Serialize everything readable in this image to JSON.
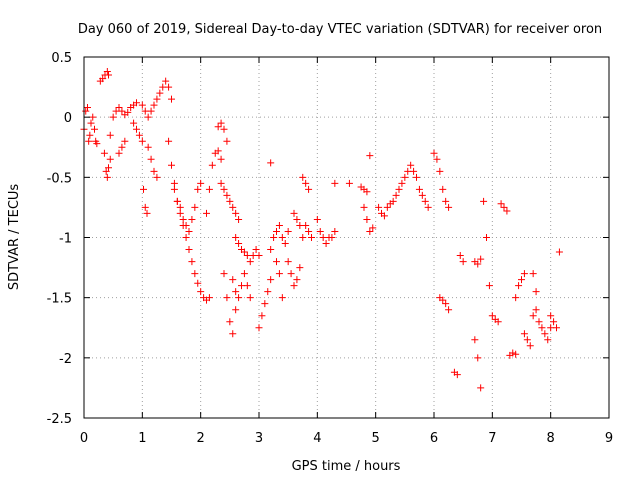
{
  "chart_data": {
    "type": "scatter",
    "title": "Day 060 of 2019, Sidereal Day-to-day VTEC variation (SDTVAR) for receiver oron",
    "xlabel": "GPS time / hours",
    "ylabel": "SDTVAR / TECUs",
    "xlim": [
      0,
      9
    ],
    "ylim": [
      -2.5,
      0.5
    ],
    "xticks": [
      0,
      1,
      2,
      3,
      4,
      5,
      6,
      7,
      8,
      9
    ],
    "yticks": [
      -2.5,
      -2,
      -1.5,
      -1,
      -0.5,
      0,
      0.5
    ],
    "xtick_labels": [
      "0",
      "1",
      "2",
      "3",
      "4",
      "5",
      "6",
      "7",
      "8",
      "9"
    ],
    "ytick_labels": [
      "-2.5",
      "-2",
      "-1.5",
      "-1",
      "-0.5",
      "0",
      "0.5"
    ],
    "grid": true,
    "marker": "+",
    "color": "#ff0000",
    "series": [
      {
        "name": "SDTVAR",
        "segments": [
          {
            "x": [
              0.0,
              0.03,
              0.06
            ],
            "y": [
              -0.1,
              0.05,
              0.08
            ]
          },
          {
            "x": [
              0.08,
              0.1,
              0.12,
              0.15,
              0.18,
              0.2,
              0.22
            ],
            "y": [
              -0.2,
              -0.15,
              -0.05,
              0.0,
              -0.1,
              -0.2,
              -0.22
            ]
          },
          {
            "x": [
              0.28,
              0.32,
              0.36,
              0.4,
              0.42
            ],
            "y": [
              0.3,
              0.32,
              0.35,
              0.38,
              0.35
            ]
          },
          {
            "x": [
              0.35,
              0.38,
              0.4,
              0.42,
              0.45
            ],
            "y": [
              -0.3,
              -0.45,
              -0.5,
              -0.42,
              -0.35
            ]
          },
          {
            "x": [
              0.45,
              0.5,
              0.55,
              0.6,
              0.65,
              0.7,
              0.75,
              0.8,
              0.85,
              0.9
            ],
            "y": [
              -0.15,
              0.0,
              0.05,
              0.08,
              0.05,
              0.02,
              0.04,
              0.08,
              0.1,
              0.12
            ]
          },
          {
            "x": [
              0.6,
              0.65,
              0.7
            ],
            "y": [
              -0.3,
              -0.25,
              -0.2
            ]
          },
          {
            "x": [
              0.85,
              0.9,
              0.95,
              1.0
            ],
            "y": [
              -0.05,
              -0.1,
              -0.15,
              -0.2
            ]
          },
          {
            "x": [
              1.0,
              1.05,
              1.1,
              1.15,
              1.2,
              1.25
            ],
            "y": [
              0.1,
              0.05,
              0.0,
              0.05,
              0.1,
              0.15
            ]
          },
          {
            "x": [
              1.02,
              1.05,
              1.08
            ],
            "y": [
              -0.6,
              -0.75,
              -0.8
            ]
          },
          {
            "x": [
              1.1,
              1.15,
              1.2,
              1.25
            ],
            "y": [
              -0.25,
              -0.35,
              -0.45,
              -0.5
            ]
          },
          {
            "x": [
              1.3,
              1.35,
              1.4,
              1.45,
              1.5
            ],
            "y": [
              0.2,
              0.25,
              0.3,
              0.25,
              0.15
            ]
          },
          {
            "x": [
              1.45,
              1.5,
              1.55,
              1.6,
              1.65,
              1.7,
              1.75,
              1.8,
              1.85,
              1.9,
              1.95,
              2.0,
              2.05,
              2.1,
              2.15
            ],
            "y": [
              -0.2,
              -0.4,
              -0.55,
              -0.7,
              -0.8,
              -0.9,
              -1.0,
              -1.1,
              -1.2,
              -1.3,
              -1.38,
              -1.45,
              -1.5,
              -1.52,
              -1.5
            ]
          },
          {
            "x": [
              1.55,
              1.6,
              1.65,
              1.7,
              1.75,
              1.8,
              1.85,
              1.9,
              1.95,
              2.0
            ],
            "y": [
              -0.6,
              -0.7,
              -0.75,
              -0.85,
              -0.9,
              -0.95,
              -0.85,
              -0.75,
              -0.6,
              -0.55
            ]
          },
          {
            "x": [
              2.1,
              2.15,
              2.2,
              2.25,
              2.3,
              2.35
            ],
            "y": [
              -0.8,
              -0.6,
              -0.4,
              -0.3,
              -0.28,
              -0.35
            ]
          },
          {
            "x": [
              2.3,
              2.35,
              2.4,
              2.45
            ],
            "y": [
              -0.08,
              -0.05,
              -0.1,
              -0.2
            ]
          },
          {
            "x": [
              2.35,
              2.4,
              2.45,
              2.5,
              2.55,
              2.6,
              2.65
            ],
            "y": [
              -0.55,
              -0.6,
              -0.65,
              -0.7,
              -0.75,
              -0.8,
              -0.85
            ]
          },
          {
            "x": [
              2.4,
              2.45,
              2.5,
              2.55,
              2.6
            ],
            "y": [
              -1.3,
              -1.5,
              -1.7,
              -1.8,
              -1.6
            ]
          },
          {
            "x": [
              2.6,
              2.65,
              2.7,
              2.75,
              2.8,
              2.85,
              2.9,
              2.95,
              3.0
            ],
            "y": [
              -1.0,
              -1.05,
              -1.1,
              -1.12,
              -1.15,
              -1.2,
              -1.15,
              -1.1,
              -1.15
            ]
          },
          {
            "x": [
              2.55,
              2.6,
              2.65,
              2.7
            ],
            "y": [
              -1.35,
              -1.45,
              -1.5,
              -1.4
            ]
          },
          {
            "x": [
              2.75,
              2.8,
              2.85
            ],
            "y": [
              -1.3,
              -1.4,
              -1.5
            ]
          },
          {
            "x": [
              3.0,
              3.05,
              3.1,
              3.15,
              3.2
            ],
            "y": [
              -1.75,
              -1.65,
              -1.55,
              -1.45,
              -1.35
            ]
          },
          {
            "x": [
              3.2
            ],
            "y": [
              -0.38
            ]
          },
          {
            "x": [
              3.2,
              3.25,
              3.3,
              3.35,
              3.4,
              3.45,
              3.5
            ],
            "y": [
              -1.1,
              -1.0,
              -0.95,
              -0.9,
              -1.0,
              -1.05,
              -0.95
            ]
          },
          {
            "x": [
              3.3,
              3.35,
              3.4
            ],
            "y": [
              -1.2,
              -1.3,
              -1.5
            ]
          },
          {
            "x": [
              3.5,
              3.55,
              3.6,
              3.65,
              3.7
            ],
            "y": [
              -1.2,
              -1.3,
              -1.4,
              -1.35,
              -1.25
            ]
          },
          {
            "x": [
              3.6,
              3.65,
              3.7,
              3.75
            ],
            "y": [
              -0.8,
              -0.85,
              -0.9,
              -1.0
            ]
          },
          {
            "x": [
              3.75,
              3.8,
              3.85
            ],
            "y": [
              -0.5,
              -0.55,
              -0.6
            ]
          },
          {
            "x": [
              3.8,
              3.85,
              3.9
            ],
            "y": [
              -0.9,
              -0.95,
              -1.0
            ]
          },
          {
            "x": [
              4.0,
              4.05,
              4.1,
              4.15,
              4.2,
              4.25,
              4.3
            ],
            "y": [
              -0.85,
              -0.95,
              -1.0,
              -1.05,
              -1.0,
              -1.0,
              -0.95
            ]
          },
          {
            "x": [
              4.3
            ],
            "y": [
              -0.55
            ]
          },
          {
            "x": [
              4.55
            ],
            "y": [
              -0.55
            ]
          },
          {
            "x": [
              4.75,
              4.8,
              4.85
            ],
            "y": [
              -0.58,
              -0.6,
              -0.62
            ]
          },
          {
            "x": [
              4.8,
              4.85
            ],
            "y": [
              -0.75,
              -0.85
            ]
          },
          {
            "x": [
              4.9
            ],
            "y": [
              -0.32
            ]
          },
          {
            "x": [
              4.9,
              4.95
            ],
            "y": [
              -0.95,
              -0.92
            ]
          },
          {
            "x": [
              5.05,
              5.1,
              5.15,
              5.2,
              5.25,
              5.3,
              5.35,
              5.4,
              5.45,
              5.5,
              5.55,
              5.6,
              5.65,
              5.7,
              5.75,
              5.8,
              5.85,
              5.9
            ],
            "y": [
              -0.75,
              -0.8,
              -0.82,
              -0.75,
              -0.72,
              -0.7,
              -0.65,
              -0.6,
              -0.55,
              -0.5,
              -0.45,
              -0.4,
              -0.45,
              -0.5,
              -0.6,
              -0.65,
              -0.7,
              -0.75
            ]
          },
          {
            "x": [
              6.0,
              6.05,
              6.1,
              6.15,
              6.2,
              6.25
            ],
            "y": [
              -0.3,
              -0.35,
              -0.45,
              -0.6,
              -0.7,
              -0.75
            ]
          },
          {
            "x": [
              6.1,
              6.15,
              6.2,
              6.25
            ],
            "y": [
              -1.5,
              -1.52,
              -1.55,
              -1.6
            ]
          },
          {
            "x": [
              6.35,
              6.4
            ],
            "y": [
              -2.12,
              -2.14
            ]
          },
          {
            "x": [
              6.45,
              6.5
            ],
            "y": [
              -1.15,
              -1.2
            ]
          },
          {
            "x": [
              6.7,
              6.75,
              6.8
            ],
            "y": [
              -1.2,
              -1.22,
              -1.18
            ]
          },
          {
            "x": [
              6.7,
              6.75,
              6.8
            ],
            "y": [
              -1.85,
              -2.0,
              -2.25
            ]
          },
          {
            "x": [
              6.85,
              6.9,
              6.95
            ],
            "y": [
              -0.7,
              -1.0,
              -1.4
            ]
          },
          {
            "x": [
              7.0,
              7.05,
              7.1
            ],
            "y": [
              -1.65,
              -1.68,
              -1.7
            ]
          },
          {
            "x": [
              7.15,
              7.2,
              7.25
            ],
            "y": [
              -0.72,
              -0.75,
              -0.78
            ]
          },
          {
            "x": [
              7.3,
              7.35,
              7.4
            ],
            "y": [
              -1.98,
              -1.96,
              -1.97
            ]
          },
          {
            "x": [
              7.4,
              7.45,
              7.5,
              7.55
            ],
            "y": [
              -1.5,
              -1.4,
              -1.35,
              -1.3
            ]
          },
          {
            "x": [
              7.55,
              7.6,
              7.65
            ],
            "y": [
              -1.8,
              -1.85,
              -1.9
            ]
          },
          {
            "x": [
              7.7,
              7.75,
              7.8,
              7.85,
              7.9,
              7.95,
              8.0
            ],
            "y": [
              -1.65,
              -1.6,
              -1.7,
              -1.75,
              -1.8,
              -1.85,
              -1.75
            ]
          },
          {
            "x": [
              7.7,
              7.75
            ],
            "y": [
              -1.3,
              -1.45
            ]
          },
          {
            "x": [
              8.0,
              8.05,
              8.1
            ],
            "y": [
              -1.65,
              -1.7,
              -1.75
            ]
          },
          {
            "x": [
              8.15
            ],
            "y": [
              -1.12
            ]
          }
        ]
      }
    ]
  }
}
